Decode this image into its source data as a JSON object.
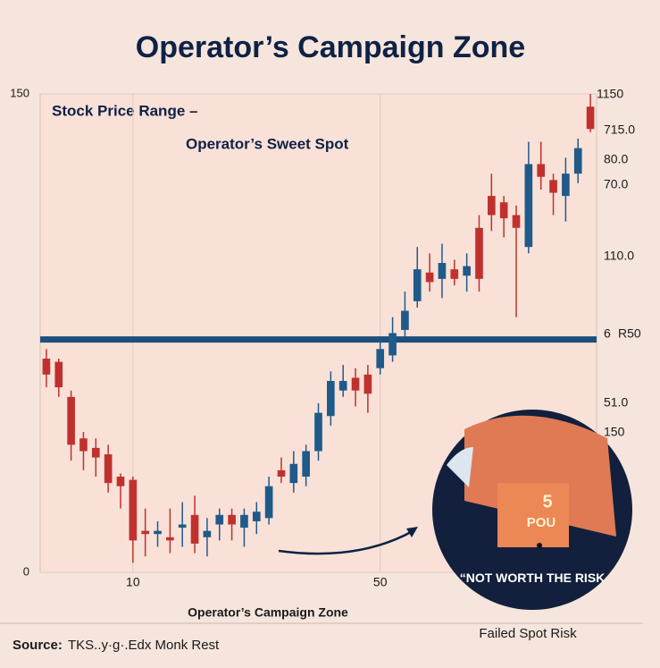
{
  "chart_data": {
    "type": "candlestick",
    "title": "Operator’s Campaign Zone",
    "annotations": [
      "Stock Price Range –",
      "Operator’s Sweet Spot"
    ],
    "x_label": "Operator’s Campaign Zone",
    "footer_right": "Failed Spot Risk",
    "source_label": "Source:",
    "source": "TKS..y·g·.Edx Monk Rest",
    "inset_texts": [
      "5",
      "POU",
      "“NOT WORTH THE RISK"
    ],
    "right_labels": [
      "1150",
      "715.0",
      "80.0",
      "70.0",
      "110.0",
      "6",
      "R50",
      "51.0",
      "150"
    ],
    "x": [
      -4,
      -2,
      0,
      2,
      4,
      6,
      8,
      10,
      12,
      14,
      16,
      18,
      20,
      22,
      24,
      26,
      28,
      30,
      32,
      34,
      36,
      38,
      40,
      42,
      44,
      46,
      48,
      50,
      52,
      54,
      56,
      58,
      60,
      62,
      64,
      66,
      68,
      70,
      72,
      74,
      76,
      78,
      80,
      82,
      84
    ],
    "open": [
      67,
      66,
      55,
      42,
      39,
      37,
      30,
      29,
      13,
      12,
      11,
      14,
      18,
      11,
      15,
      18,
      14,
      16,
      17,
      32,
      28,
      30,
      38,
      49,
      57,
      61,
      62,
      64,
      68,
      76,
      85,
      94,
      92,
      95,
      93,
      108,
      118,
      116,
      112,
      102,
      128,
      123,
      118,
      125,
      146
    ],
    "close": [
      62,
      58,
      40,
      38,
      36,
      28,
      27,
      10,
      12,
      13,
      10,
      15,
      9,
      13,
      18,
      15,
      18,
      19,
      27,
      30,
      34,
      38,
      50,
      60,
      60,
      57,
      56,
      70,
      75,
      82,
      95,
      91,
      97,
      92,
      96,
      92,
      112,
      111,
      108,
      128,
      124,
      119,
      125,
      133,
      139
    ],
    "high": [
      70,
      67,
      57,
      44,
      42,
      40,
      31,
      30,
      20,
      16,
      20,
      22,
      24,
      17,
      20,
      20,
      20,
      22,
      30,
      36,
      38,
      40,
      53,
      63,
      65,
      64,
      65,
      73,
      80,
      88,
      102,
      100,
      103,
      98,
      100,
      112,
      125,
      118,
      115,
      135,
      135,
      125,
      130,
      136,
      150
    ],
    "low": [
      58,
      55,
      35,
      32,
      30,
      25,
      20,
      3,
      5,
      8,
      6,
      8,
      6,
      5,
      10,
      10,
      8,
      12,
      15,
      28,
      25,
      27,
      35,
      46,
      55,
      52,
      50,
      62,
      66,
      74,
      83,
      88,
      86,
      90,
      88,
      88,
      107,
      105,
      80,
      100,
      120,
      112,
      110,
      122,
      138
    ],
    "up_color": "#1f5a8a",
    "down_color": "#c0312e",
    "hline": 73,
    "hline_color": "#1c4f7c",
    "xlim": [
      -5,
      85
    ],
    "ylim": [
      0,
      150
    ],
    "xticks": [
      10,
      50
    ],
    "yticks": [
      0,
      150
    ],
    "grid": true
  }
}
